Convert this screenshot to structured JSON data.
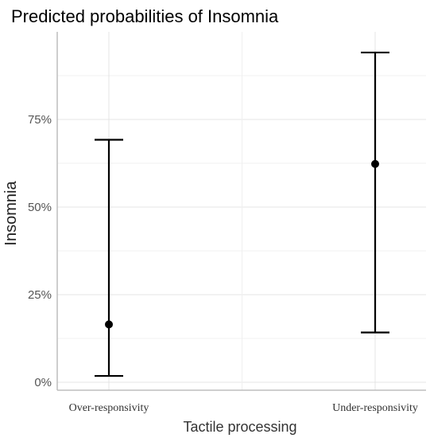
{
  "chart_data": {
    "type": "scatter",
    "title": "Predicted probabilities of Insomnia",
    "xlabel": "Tactile processing",
    "ylabel": "Insomnia",
    "categories": [
      "Over-responsivity",
      "Under-responsivity"
    ],
    "series": [
      {
        "values": [
          0.165,
          0.623
        ],
        "lower": [
          0.018,
          0.142
        ],
        "upper": [
          0.692,
          0.941
        ]
      }
    ],
    "ylim": [
      0,
      1
    ],
    "yticks": [
      0,
      0.25,
      0.5,
      0.75
    ],
    "ytick_labels": [
      "0%",
      "25%",
      "50%",
      "75%"
    ],
    "grid": true,
    "colors": {
      "marks": "#000000",
      "grid": "#e4e4e4"
    }
  }
}
